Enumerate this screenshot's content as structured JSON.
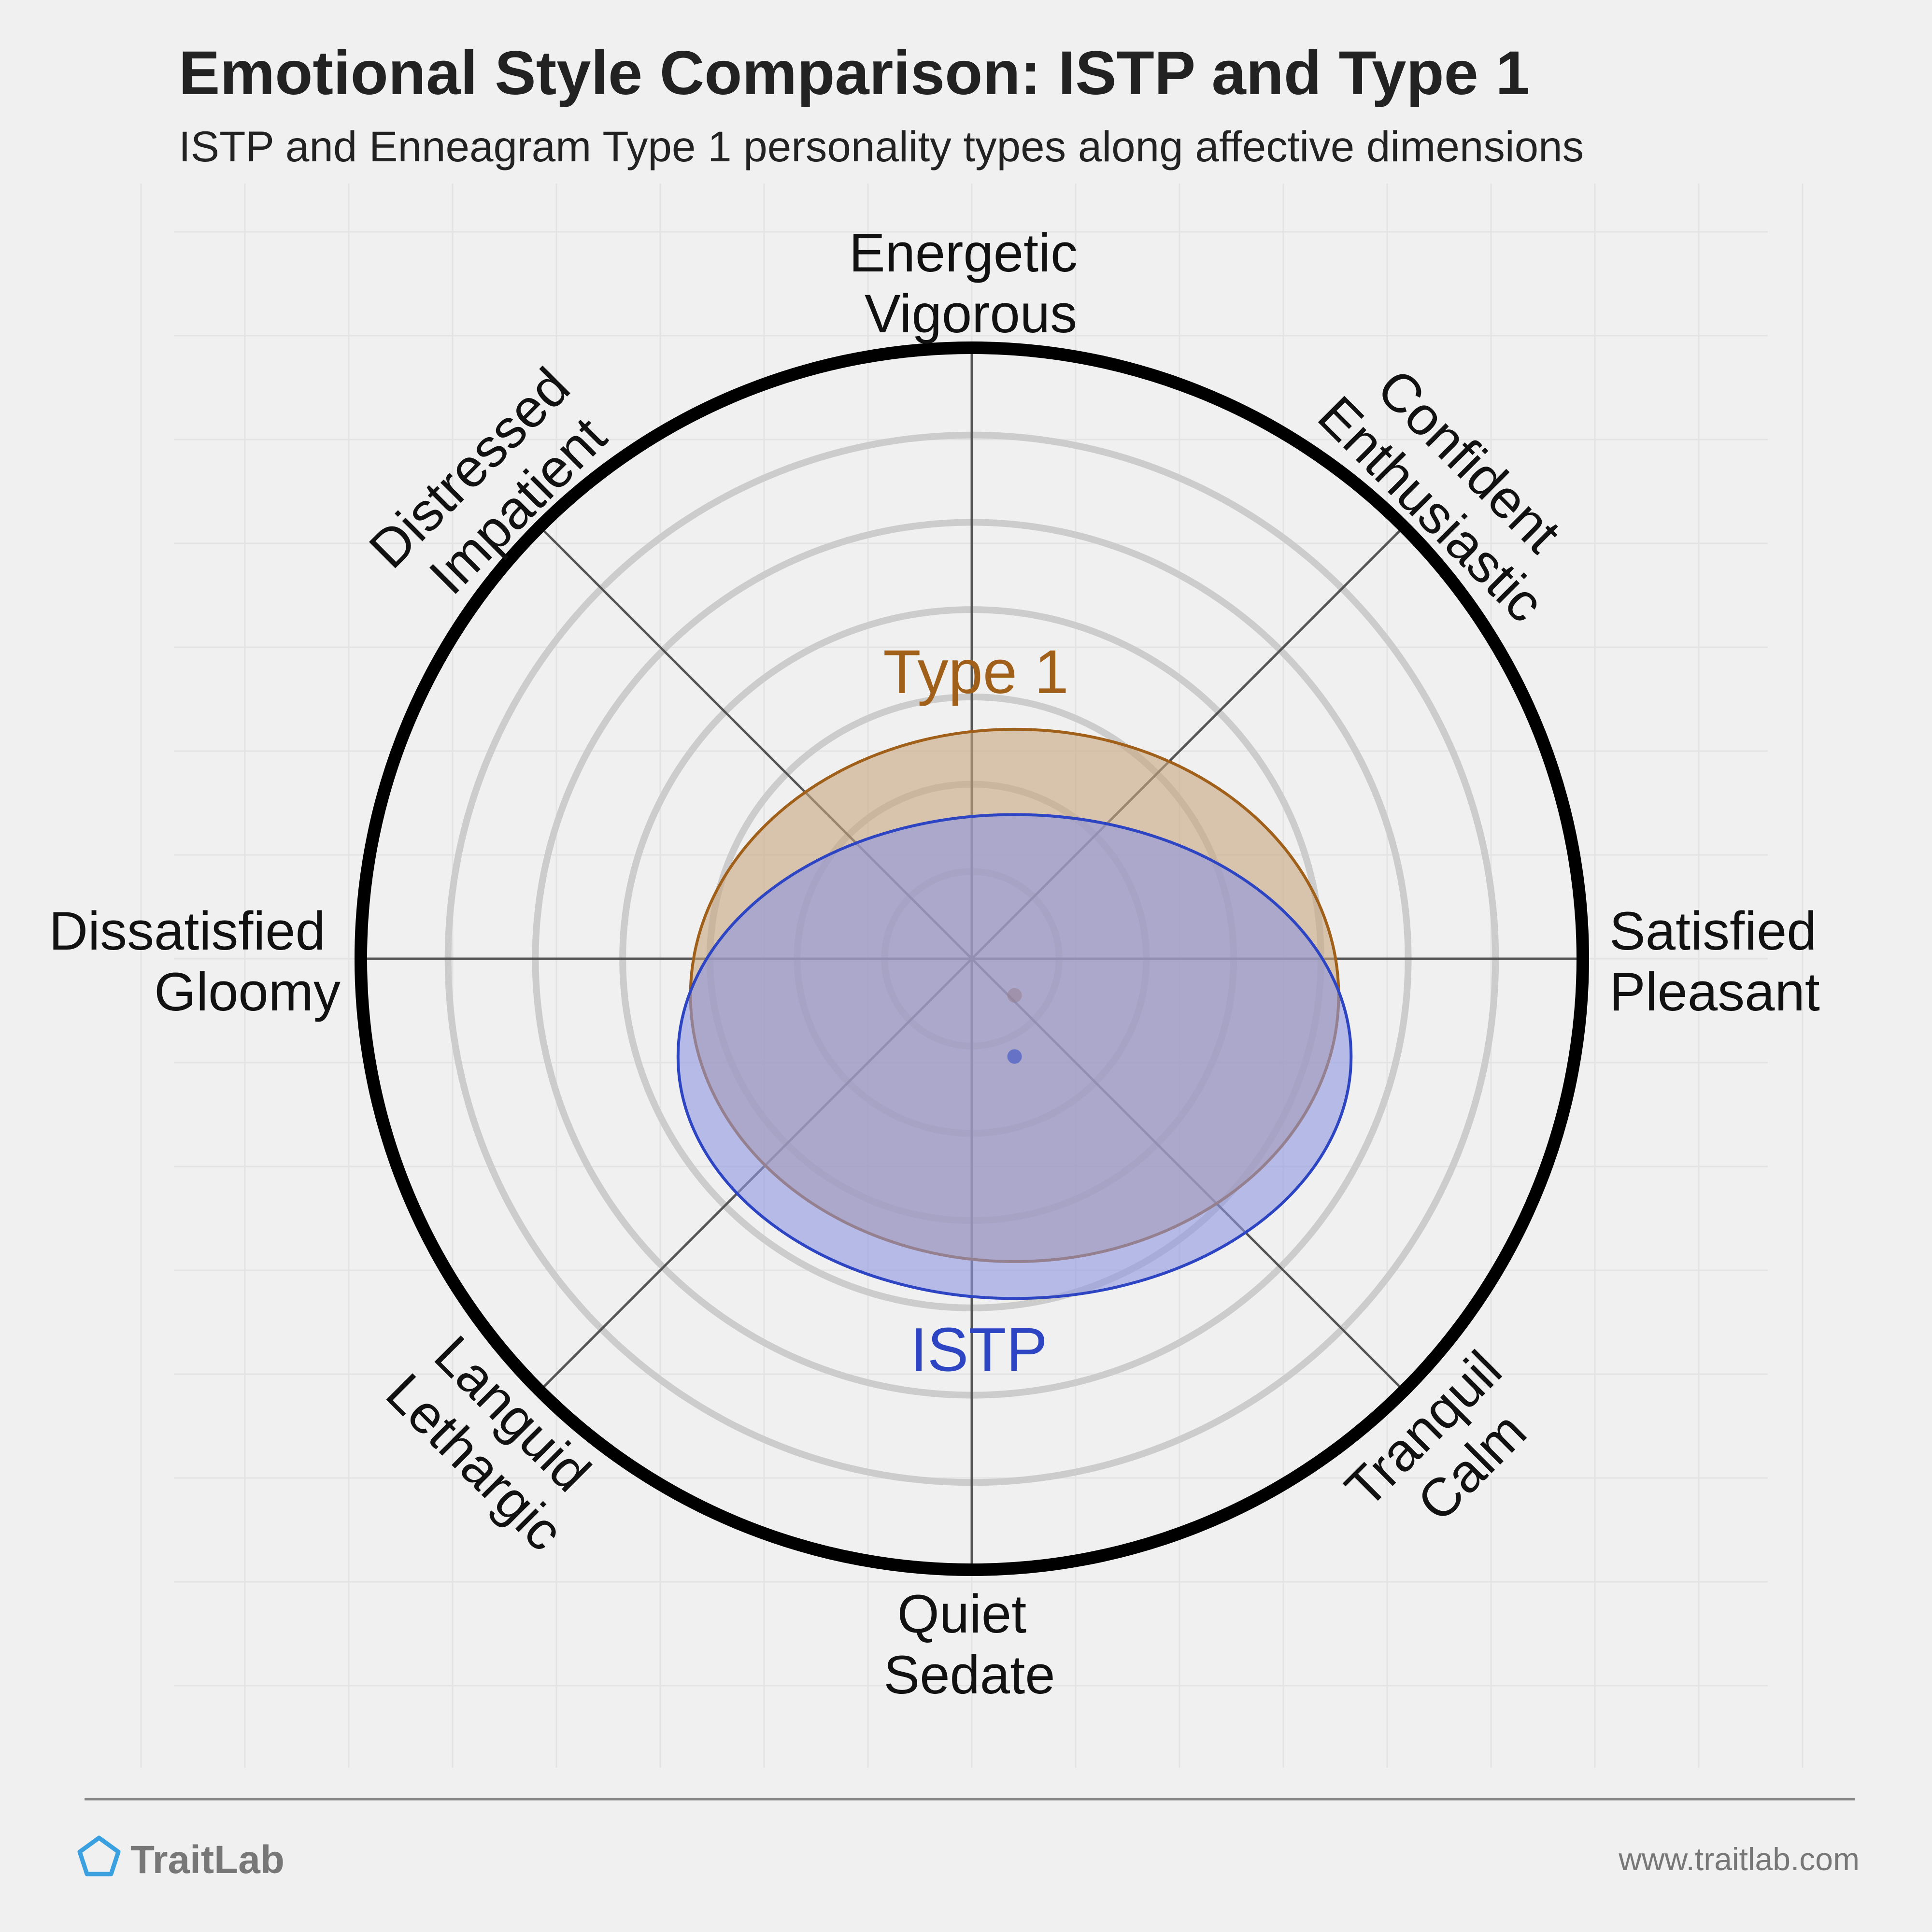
{
  "chart_data": {
    "type": "scatter",
    "title": "Emotional Style Comparison: ISTP and Type 1",
    "subtitle": "ISTP and Enneagram Type 1 personality types along affective dimensions",
    "x_axis": {
      "negative": [
        "Dissatisfied",
        "Gloomy"
      ],
      "positive": [
        "Satisfied",
        "Pleasant"
      ],
      "range": [
        -1,
        1
      ]
    },
    "y_axis": {
      "negative": [
        "Quiet",
        "Sedate"
      ],
      "positive": [
        "Energetic",
        "Vigorous"
      ],
      "range": [
        -1,
        1
      ]
    },
    "diagonals": [
      {
        "direction": "upper-left",
        "lines": [
          "Distressed",
          "Impatient"
        ]
      },
      {
        "direction": "upper-right",
        "lines": [
          "Confident",
          "Enthusiastic"
        ]
      },
      {
        "direction": "lower-left",
        "lines": [
          "Languid",
          "Lethargic"
        ]
      },
      {
        "direction": "lower-right",
        "lines": [
          "Tranquil",
          "Calm"
        ]
      }
    ],
    "rings": 6,
    "grid": true,
    "series": [
      {
        "name": "Type 1",
        "x": 0.07,
        "y": -0.06,
        "spread_x": 0.78,
        "spread_y": 0.66,
        "color": "#a0601a",
        "fill": "#c8a77f"
      },
      {
        "name": "ISTP",
        "x": 0.07,
        "y": -0.16,
        "spread_x": 0.81,
        "spread_y": 0.6,
        "color": "#2d45c2",
        "fill": "#8d96df"
      }
    ]
  },
  "footer": {
    "brand": "TraitLab",
    "url": "www.traitlab.com",
    "logo_icon": "pentagon-icon"
  }
}
